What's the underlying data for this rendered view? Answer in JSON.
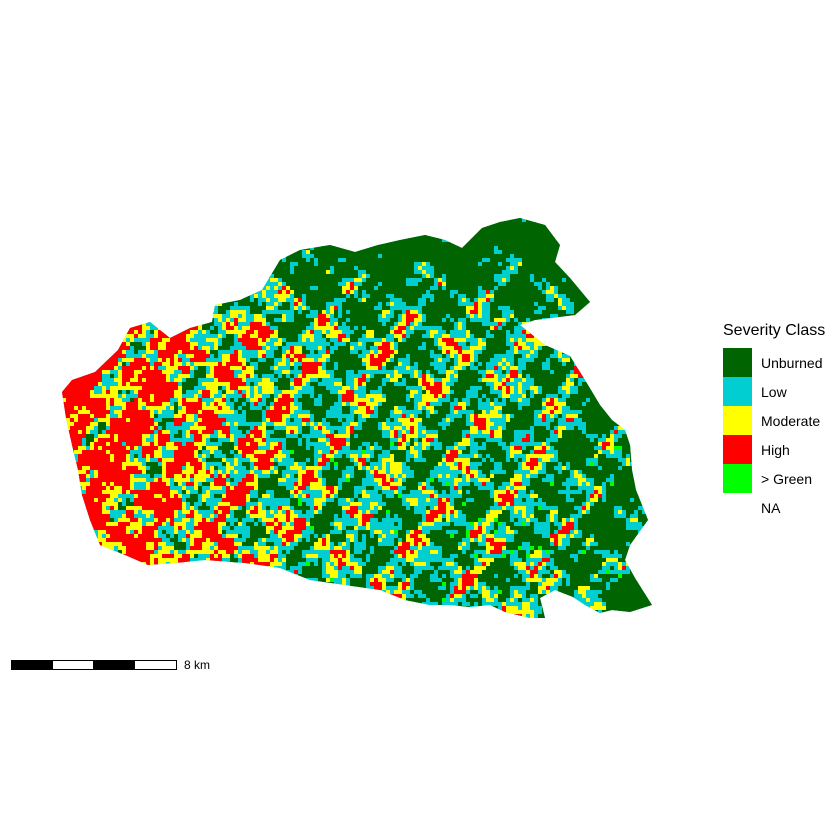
{
  "map": {
    "colors": {
      "unburned": "#006400",
      "low": "#00CED1",
      "moderate": "#FFFF00",
      "high": "#FF0000",
      "green": "#00FF00"
    }
  },
  "legend": {
    "title": "Severity Class",
    "items": [
      {
        "label": "Unburned",
        "color": "#006400"
      },
      {
        "label": "Low",
        "color": "#00CED1"
      },
      {
        "label": "Moderate",
        "color": "#FFFF00"
      },
      {
        "label": "High",
        "color": "#FF0000"
      },
      {
        "label": "> Green",
        "color": "#00FF00"
      },
      {
        "label": "NA",
        "color": ""
      }
    ]
  },
  "scalebar": {
    "label": "8 km",
    "segments": 4,
    "colors": [
      "#000000",
      "#ffffff"
    ]
  }
}
